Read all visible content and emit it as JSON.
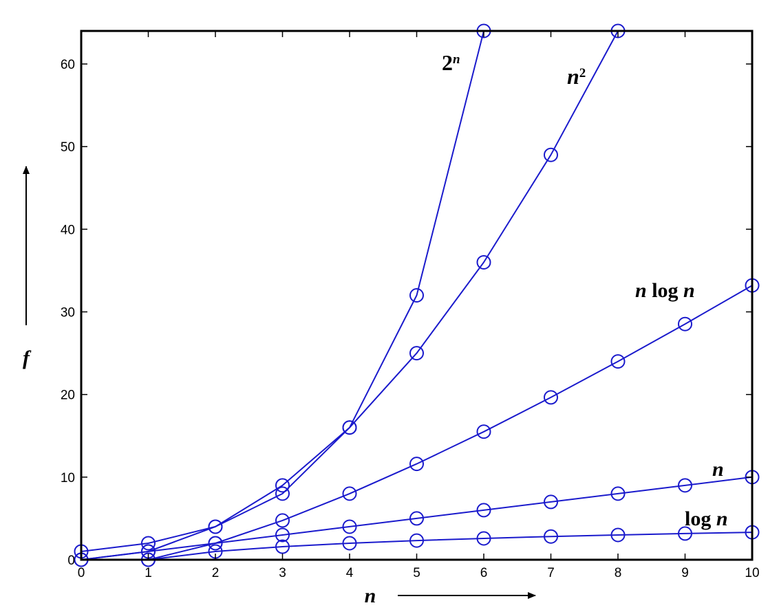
{
  "chart_data": {
    "type": "line",
    "title": "",
    "xlabel": "n",
    "ylabel": "f",
    "xlim": [
      0,
      10
    ],
    "ylim": [
      0,
      64
    ],
    "xticks": [
      0,
      1,
      2,
      3,
      4,
      5,
      6,
      7,
      8,
      9,
      10
    ],
    "yticks": [
      0,
      10,
      20,
      30,
      40,
      50,
      60
    ],
    "grid": false,
    "line_color": "#1a1acc",
    "series": [
      {
        "name": "2",
        "name_sup": "n",
        "x": [
          0,
          1,
          2,
          3,
          4,
          5,
          6
        ],
        "y": [
          1,
          2,
          4,
          8,
          16,
          32,
          64
        ]
      },
      {
        "name": "n",
        "name_sup": "2",
        "x": [
          0,
          1,
          2,
          3,
          4,
          5,
          6,
          7,
          8
        ],
        "y": [
          0,
          1,
          4,
          9,
          16,
          25,
          36,
          49,
          64
        ]
      },
      {
        "name": "n log n",
        "name_sup": "",
        "x": [
          1,
          2,
          3,
          4,
          5,
          6,
          7,
          8,
          9,
          10
        ],
        "y": [
          0,
          2,
          4.75,
          8,
          11.6,
          15.5,
          19.65,
          24,
          28.53,
          33.2
        ]
      },
      {
        "name": "n",
        "name_sup": "",
        "x": [
          0,
          1,
          2,
          3,
          4,
          5,
          6,
          7,
          8,
          9,
          10
        ],
        "y": [
          0,
          1,
          2,
          3,
          4,
          5,
          6,
          7,
          8,
          9,
          10
        ]
      },
      {
        "name": "log n",
        "name_sup": "",
        "x": [
          1,
          2,
          3,
          4,
          5,
          6,
          7,
          8,
          9,
          10
        ],
        "y": [
          0,
          1,
          1.58,
          2,
          2.32,
          2.58,
          2.81,
          3,
          3.17,
          3.32
        ]
      }
    ]
  }
}
